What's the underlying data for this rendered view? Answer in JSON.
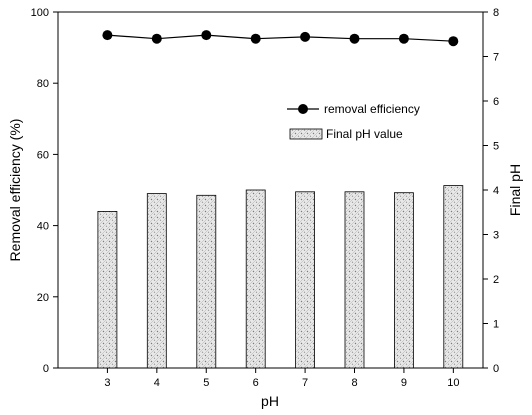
{
  "chart_data": {
    "type": "bar",
    "x": [
      3,
      4,
      5,
      6,
      7,
      8,
      9,
      10
    ],
    "x_tick_labels": [
      "3",
      "4",
      "5",
      "6",
      "7",
      "8",
      "9",
      "10"
    ],
    "xlabel": "pH",
    "ylabel_left": "Removal efficiency (%)",
    "ylabel_right": "Final pH",
    "ylim_left": [
      0,
      100
    ],
    "ylim_right": [
      0,
      8
    ],
    "yticks_left": [
      "0",
      "20",
      "40",
      "60",
      "80",
      "100"
    ],
    "yticks_right": [
      "0",
      "1",
      "2",
      "3",
      "4",
      "5",
      "6",
      "7",
      "8"
    ],
    "series": [
      {
        "name": "removal efficiency",
        "type": "line",
        "axis": "left",
        "marker": "filled-circle",
        "values": [
          93.5,
          92.5,
          93.5,
          92.5,
          93.0,
          92.5,
          92.5,
          91.8
        ]
      },
      {
        "name": "Final pH value",
        "type": "bar",
        "axis": "right",
        "pattern": "stippled",
        "values": [
          3.52,
          3.92,
          3.88,
          4.0,
          3.96,
          3.96,
          3.94,
          4.1
        ]
      }
    ],
    "legend_placement": "upper-right",
    "grid": false
  },
  "colors": {
    "axis": "#000000",
    "marker": "#000000",
    "bar_fill": "#e8e8e8",
    "bar_stipple": "#7a7a7a"
  }
}
